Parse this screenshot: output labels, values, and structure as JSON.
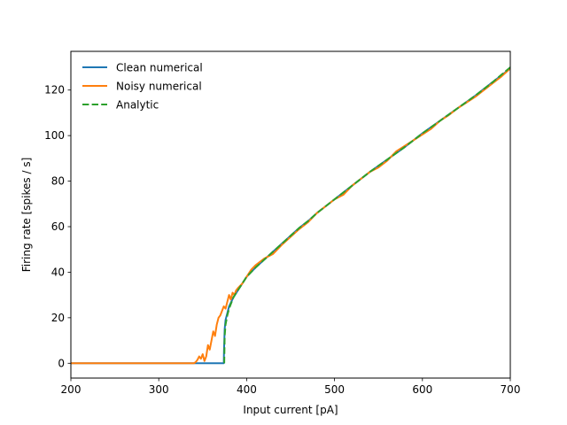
{
  "chart_data": {
    "type": "line",
    "title": "",
    "xlabel": "Input current [pA]",
    "ylabel": "Firing rate [spikes / s]",
    "xlim": [
      200,
      700
    ],
    "ylim": [
      -6.5,
      137
    ],
    "xticks": [
      200,
      300,
      400,
      500,
      600,
      700
    ],
    "yticks": [
      0,
      20,
      40,
      60,
      80,
      100,
      120
    ],
    "grid": false,
    "legend_position": "top-left",
    "series": [
      {
        "name": "Clean numerical",
        "color": "#1f77b4",
        "style": "solid",
        "x": [
          200,
          300,
          372,
          373,
          374,
          374.2,
          375,
          376,
          378,
          380,
          385,
          390,
          395,
          400,
          410,
          420,
          430,
          440,
          450,
          460,
          470,
          480,
          490,
          500,
          520,
          540,
          560,
          580,
          600,
          620,
          640,
          660,
          680,
          700
        ],
        "y": [
          0,
          0,
          0,
          0,
          0,
          5,
          15,
          19,
          22,
          25,
          29,
          32,
          35,
          38,
          42,
          45.5,
          49,
          52.5,
          56,
          59.5,
          62.5,
          66,
          69,
          72,
          78,
          84,
          89.5,
          95,
          101,
          106.5,
          112,
          117.5,
          123.5,
          129.5
        ]
      },
      {
        "name": "Noisy numerical",
        "color": "#ff7f0e",
        "style": "solid",
        "x": [
          200,
          300,
          340,
          342,
          344,
          346,
          348,
          350,
          352,
          354,
          356,
          358,
          360,
          362,
          364,
          366,
          368,
          370,
          372,
          374,
          376,
          378,
          380,
          382,
          384,
          386,
          388,
          390,
          395,
          400,
          405,
          410,
          420,
          430,
          440,
          450,
          460,
          470,
          480,
          490,
          500,
          510,
          520,
          530,
          540,
          550,
          560,
          570,
          580,
          590,
          600,
          610,
          620,
          630,
          640,
          650,
          660,
          670,
          680,
          690,
          700
        ],
        "y": [
          0,
          0,
          0,
          0.5,
          1.5,
          3,
          2,
          4,
          1,
          3,
          8,
          6,
          10,
          14,
          12,
          17,
          20,
          21,
          23,
          25,
          24,
          27,
          30,
          28,
          31,
          30,
          32,
          33,
          35,
          38,
          41,
          43,
          46,
          48,
          52,
          55.5,
          59,
          62,
          66,
          69,
          72,
          74,
          78,
          81,
          84,
          86,
          89,
          93,
          95.5,
          98,
          100.5,
          103,
          106.5,
          109,
          112,
          114.5,
          117,
          120,
          123,
          126,
          129.5
        ]
      },
      {
        "name": "Analytic",
        "color": "#2ca02c",
        "style": "dashed",
        "x": [
          374.5,
          375,
          376,
          378,
          380,
          385,
          390,
          395,
          400,
          410,
          420,
          430,
          440,
          450,
          460,
          470,
          480,
          490,
          500,
          520,
          540,
          560,
          580,
          600,
          620,
          640,
          660,
          680,
          700
        ],
        "y": [
          0,
          12,
          17,
          21,
          24,
          29,
          32,
          35,
          38,
          42,
          45.5,
          49,
          52.5,
          56,
          59.5,
          62.5,
          66,
          69,
          72,
          78,
          84,
          89.5,
          95,
          101,
          106.5,
          112,
          117.5,
          123.5,
          130
        ]
      }
    ]
  }
}
